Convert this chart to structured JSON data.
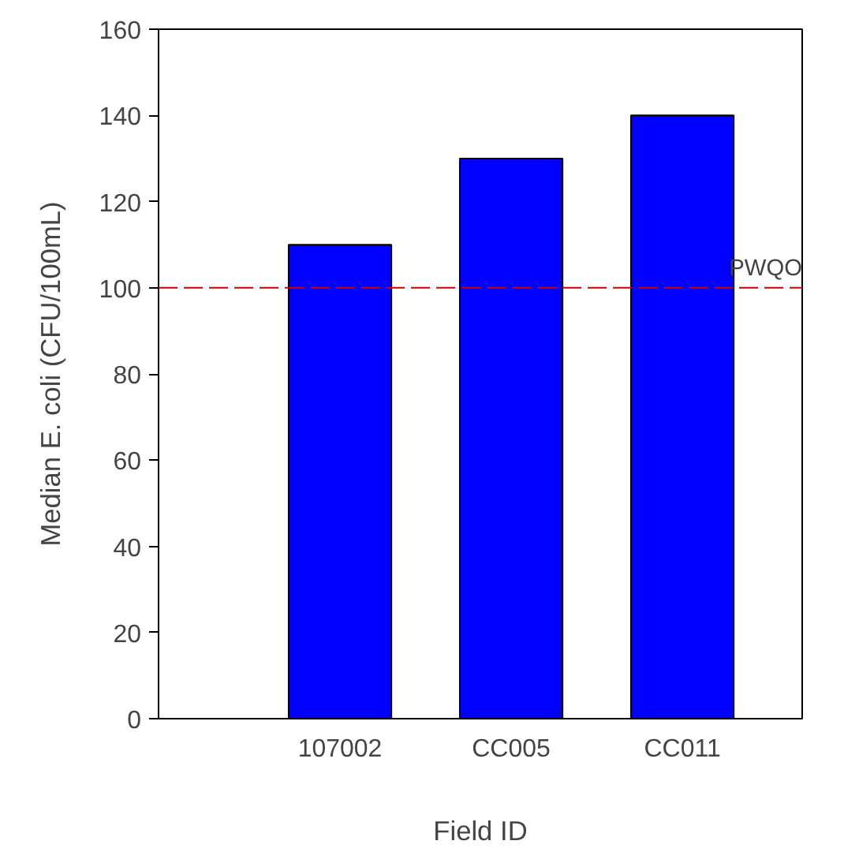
{
  "chart_data": {
    "type": "bar",
    "xlabel": "Field ID",
    "ylabel": "Median E. coli (CFU/100mL)",
    "categories": [
      "107002",
      "CC005",
      "CC011"
    ],
    "values": [
      110,
      130,
      140
    ],
    "color": "#0000ff",
    "ylim": [
      0,
      160
    ],
    "yticks": [
      0,
      20,
      40,
      60,
      80,
      100,
      120,
      140,
      160
    ],
    "grid": false,
    "ref_lines": [
      {
        "axis": "y",
        "value": 100,
        "label": "PWQO",
        "color": "#cc0000",
        "line_style": "dashed"
      }
    ]
  }
}
